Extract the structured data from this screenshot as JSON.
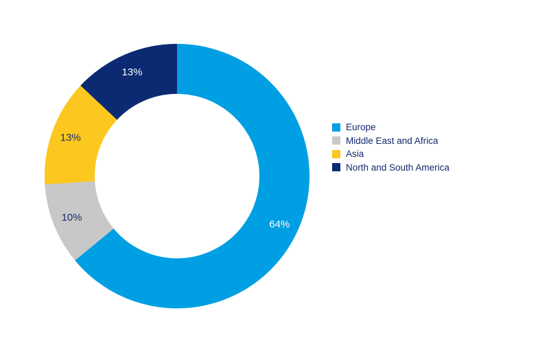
{
  "chart_data": {
    "type": "pie",
    "variant": "donut",
    "title": "",
    "categories": [
      "Europe",
      "Middle East and Africa",
      "Asia",
      "North and South America"
    ],
    "values": [
      64,
      10,
      13,
      13
    ],
    "value_labels": [
      "64%",
      "10%",
      "13%",
      "13%"
    ],
    "unit": "%",
    "colors": [
      "#009fe3",
      "#c8c8c8",
      "#fcc71e",
      "#0b2a72"
    ],
    "label_colors": [
      "#ffffff",
      "#1b2f6e",
      "#1b2f6e",
      "#ffffff"
    ],
    "start_angle_deg": 0,
    "direction": "clockwise",
    "legend": {
      "position": "right",
      "items": [
        "Europe",
        "Middle East and Africa",
        "Asia",
        "North and South America"
      ]
    }
  }
}
